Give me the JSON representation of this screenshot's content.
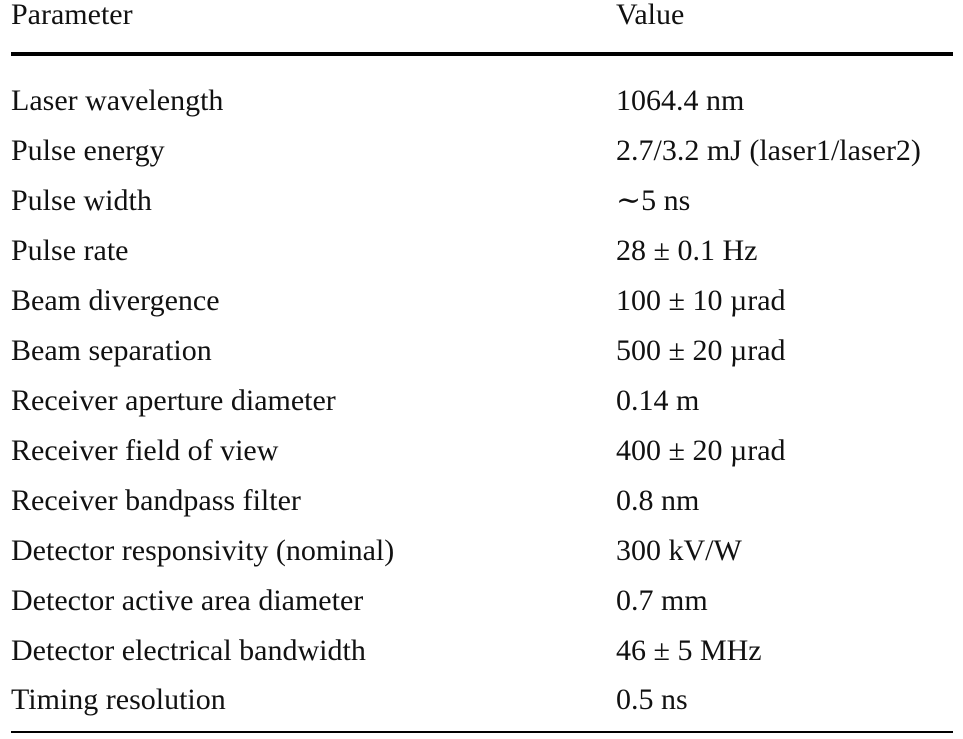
{
  "table": {
    "headers": {
      "parameter": "Parameter",
      "value": "Value"
    },
    "rows": [
      {
        "parameter": "Laser wavelength",
        "value": "1064.4 nm"
      },
      {
        "parameter": "Pulse energy",
        "value": "2.7/3.2 mJ (laser1/laser2)"
      },
      {
        "parameter": "Pulse width",
        "value": "∼5 ns"
      },
      {
        "parameter": "Pulse rate",
        "value": "28 ± 0.1 Hz"
      },
      {
        "parameter": "Beam divergence",
        "value": "100 ± 10 µrad"
      },
      {
        "parameter": "Beam separation",
        "value": "500 ± 20 µrad"
      },
      {
        "parameter": "Receiver aperture diameter",
        "value": "0.14 m"
      },
      {
        "parameter": "Receiver field of view",
        "value": "400 ± 20 µrad"
      },
      {
        "parameter": "Receiver bandpass filter",
        "value": "0.8 nm"
      },
      {
        "parameter": "Detector responsivity (nominal)",
        "value": "300 kV/W"
      },
      {
        "parameter": "Detector active area diameter",
        "value": "0.7 mm"
      },
      {
        "parameter": "Detector electrical bandwidth",
        "value": "46 ± 5 MHz"
      },
      {
        "parameter": "Timing resolution",
        "value": "0.5 ns"
      }
    ]
  }
}
